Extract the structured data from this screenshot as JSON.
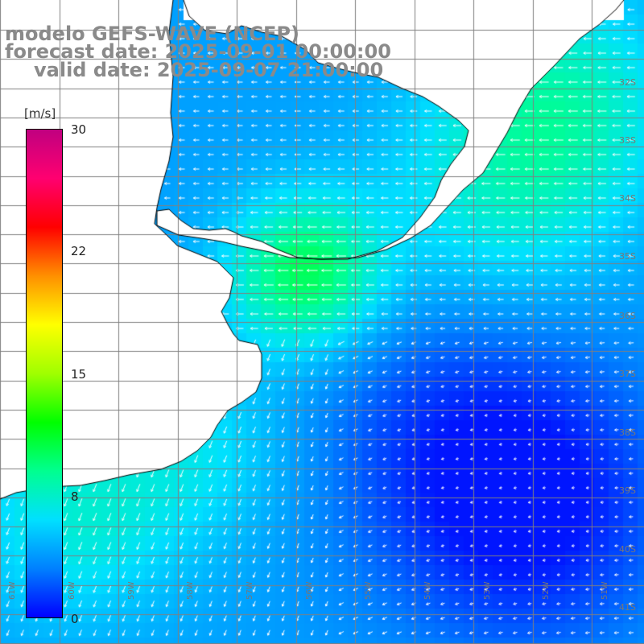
{
  "title": {
    "line1": "modelo GEFS-WAVE (NCEP)",
    "line2": "forecast date: 2025-09-01 00:00:00",
    "line3": "valid date: 2025-09-07 21:00:00"
  },
  "colorbar": {
    "unit": "[m/s]",
    "ticks": [
      "30",
      "22",
      "15",
      "8",
      "0"
    ],
    "tick_values": [
      30,
      22,
      15,
      8,
      0
    ],
    "min": 0,
    "max": 30,
    "colors": [
      "#0000ff",
      "#0080ff",
      "#00e0ff",
      "#00ff90",
      "#00ff00",
      "#a0ff00",
      "#ffff00",
      "#ff9000",
      "#ff0000",
      "#ff0070",
      "#c00080"
    ]
  },
  "lat_labels": [
    "32S",
    "33S",
    "34S",
    "35S",
    "36S",
    "37S",
    "38S",
    "39S",
    "40S",
    "41S"
  ],
  "lon_labels": [
    "61W",
    "60W",
    "59W",
    "58W",
    "57W",
    "56W",
    "55W",
    "54W",
    "53W",
    "52W",
    "51W"
  ],
  "map_colors": {
    "land": "#ffffff",
    "grid": "#808080",
    "coast": "#000000",
    "arrows": "#ffffff"
  }
}
